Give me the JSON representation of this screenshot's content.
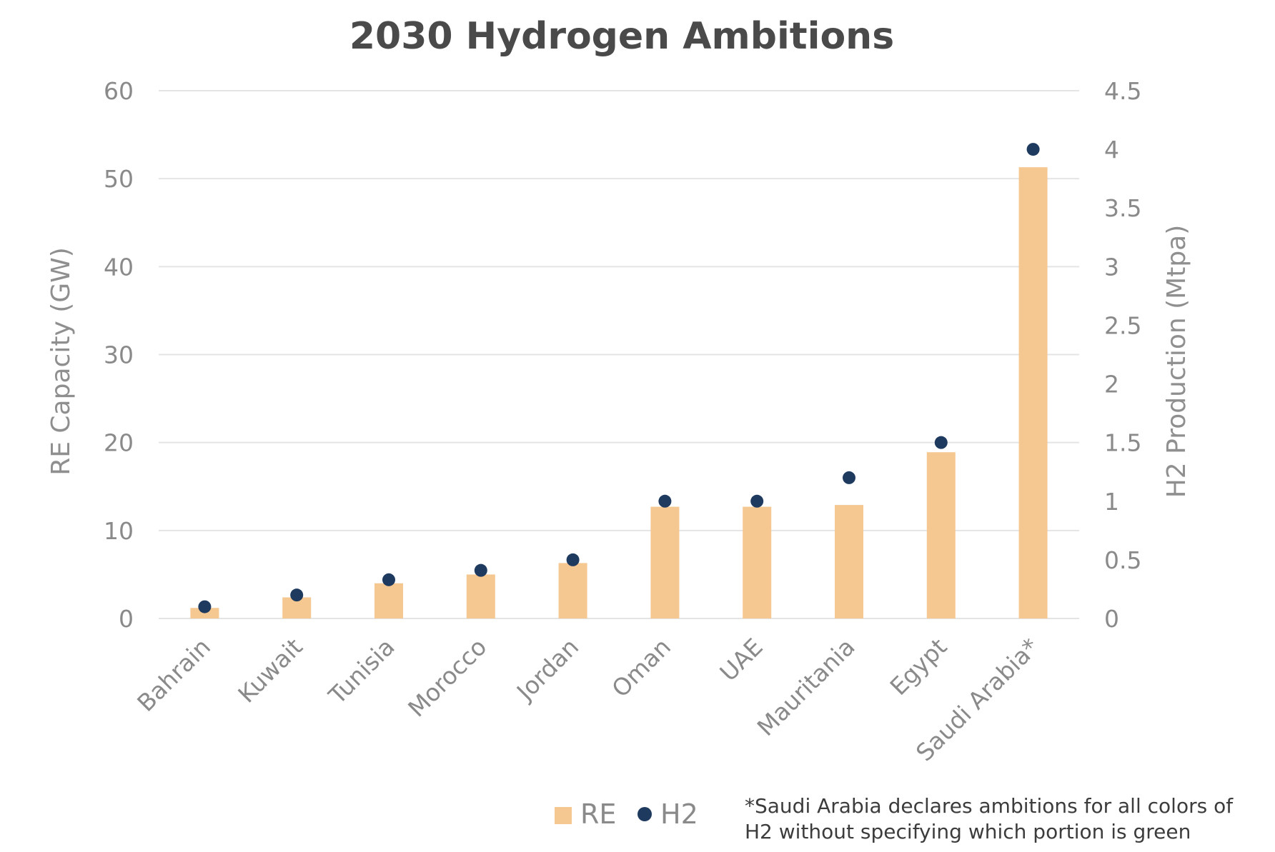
{
  "chart_data": {
    "type": "bar",
    "title": "2030 Hydrogen Ambitions",
    "categories": [
      "Bahrain",
      "Kuwait",
      "Tunisia",
      "Morocco",
      "Jordan",
      "Oman",
      "UAE",
      "Mauritania",
      "Egypt",
      "Saudi Arabia*"
    ],
    "series": [
      {
        "name": "RE",
        "kind": "bar",
        "axis": "left",
        "color": "#f5c891",
        "values": [
          1.2,
          2.4,
          4.0,
          5.0,
          6.3,
          12.7,
          12.7,
          12.9,
          18.9,
          51.3
        ]
      },
      {
        "name": "H2",
        "kind": "point",
        "axis": "right",
        "color": "#1f3a5f",
        "values": [
          0.1,
          0.2,
          0.33,
          0.41,
          0.5,
          1.0,
          1.0,
          1.2,
          1.5,
          4.0
        ]
      }
    ],
    "ylabel": "RE Capacity (GW)",
    "ylim": [
      0,
      60
    ],
    "yticks": [
      "0",
      "10",
      "20",
      "30",
      "40",
      "50",
      "60"
    ],
    "y2label": "H2 Production (Mtpa)",
    "y2lim": [
      0,
      4.5
    ],
    "y2ticks": [
      "0",
      "0.5",
      "1",
      "1.5",
      "2",
      "2.5",
      "3",
      "3.5",
      "4",
      "4.5"
    ],
    "grid": true,
    "legend_position": "bottom",
    "legend": [
      "RE",
      "H2"
    ],
    "note_lines": [
      "*Saudi Arabia declares ambitions for all colors of",
      "H2 without specifying which portion is green"
    ],
    "gridline_color": "#e4e4e4"
  }
}
